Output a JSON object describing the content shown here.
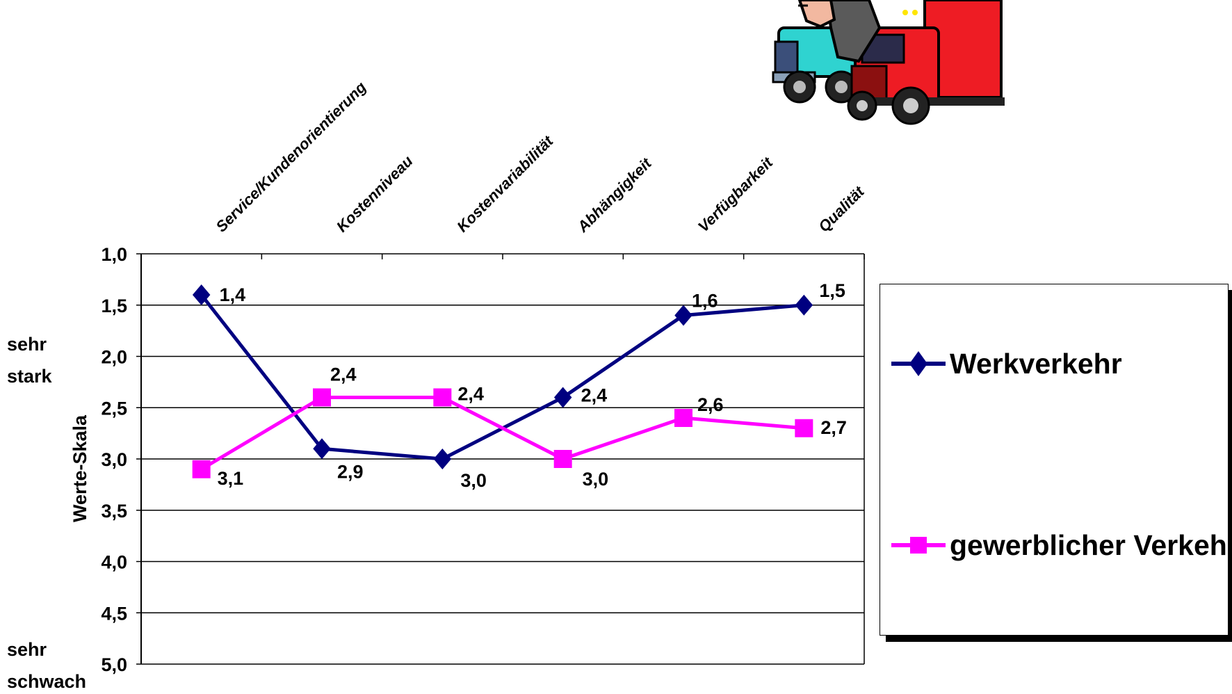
{
  "side_labels": {
    "strong_line1": "sehr",
    "strong_line2": "stark",
    "weak_line1": "sehr",
    "weak_line2": "schwach"
  },
  "chart_data": {
    "type": "line",
    "categories": [
      "Service/Kundenorientierung",
      "Kostenniveau",
      "Kostenvariabilität",
      "Abhängigkeit",
      "Verfügbarkeit",
      "Qualität"
    ],
    "ylabel": "Werte-Skala",
    "ylim": [
      1.0,
      5.0
    ],
    "y_reversed": true,
    "y_ticks": [
      "1,0",
      "1,5",
      "2,0",
      "2,5",
      "3,0",
      "3,5",
      "4,0",
      "4,5",
      "5,0"
    ],
    "grid": true,
    "legend_position": "right",
    "series": [
      {
        "name": "Werkverkehr",
        "color": "#000080",
        "marker": "diamond",
        "values": [
          1.4,
          2.9,
          3.0,
          2.4,
          1.6,
          1.5
        ],
        "labels": [
          "1,4",
          "2,9",
          "3,0",
          "2,4",
          "1,6",
          "1,5"
        ]
      },
      {
        "name": "gewerblicher Verkehr",
        "color": "#ff00ff",
        "marker": "square",
        "values": [
          3.1,
          2.4,
          2.4,
          3.0,
          2.6,
          2.7
        ],
        "labels": [
          "3,1",
          "2,4",
          "2,4",
          "3,0",
          "2,6",
          "2,7"
        ]
      }
    ]
  },
  "legend": {
    "items": [
      {
        "label": "Werkverkehr",
        "color": "#000080",
        "marker": "diamond"
      },
      {
        "label": "gewerblicher Verkehr",
        "color": "#ff00ff",
        "marker": "square"
      }
    ]
  },
  "illustration": {
    "icon": "trucks-with-pointing-hand-icon"
  }
}
